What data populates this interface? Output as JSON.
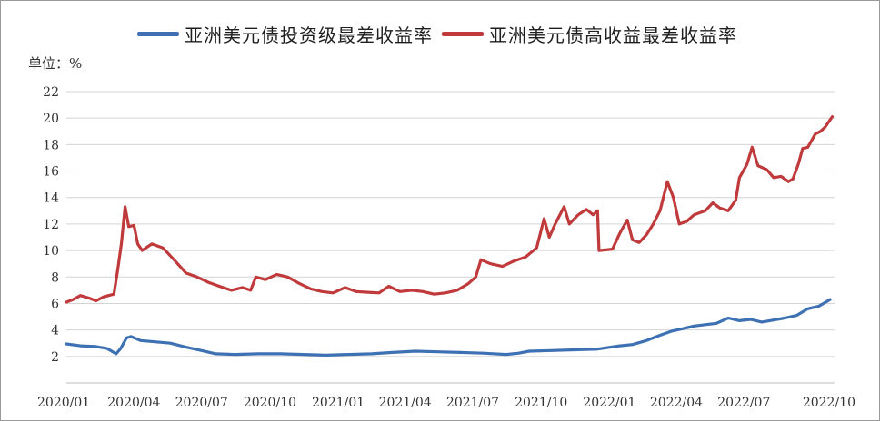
{
  "chart_data": {
    "type": "line",
    "ylabel": "单位：%",
    "ylim": [
      0,
      22
    ],
    "yticks": [
      2,
      4,
      6,
      8,
      10,
      12,
      14,
      16,
      18,
      20,
      22
    ],
    "xlim": [
      "2020-01-01",
      "2022-10-31"
    ],
    "xticks": [
      {
        "label": "2020/01",
        "date": "2020-01-01"
      },
      {
        "label": "2020/04",
        "date": "2020-04-01"
      },
      {
        "label": "2020/07",
        "date": "2020-07-01"
      },
      {
        "label": "2020/10",
        "date": "2020-10-01"
      },
      {
        "label": "2021/01",
        "date": "2021-01-01"
      },
      {
        "label": "2021/04",
        "date": "2021-04-01"
      },
      {
        "label": "2021/07",
        "date": "2021-07-01"
      },
      {
        "label": "2021/10",
        "date": "2021-10-01"
      },
      {
        "label": "2022/01",
        "date": "2022-01-01"
      },
      {
        "label": "2022/04",
        "date": "2022-04-01"
      },
      {
        "label": "2022/07",
        "date": "2022-07-01"
      },
      {
        "label": "2022/10",
        "date": "2022-10-01"
      }
    ],
    "grid": true,
    "legend_position": "top",
    "series": [
      {
        "name": "亚洲美元债投资级最差收益率",
        "color": "#3d71b3",
        "points": [
          [
            "2020-01-01",
            2.95
          ],
          [
            "2020-01-20",
            2.8
          ],
          [
            "2020-02-10",
            2.75
          ],
          [
            "2020-02-25",
            2.6
          ],
          [
            "2020-03-08",
            2.2
          ],
          [
            "2020-03-14",
            2.6
          ],
          [
            "2020-03-22",
            3.4
          ],
          [
            "2020-03-28",
            3.5
          ],
          [
            "2020-04-10",
            3.2
          ],
          [
            "2020-05-01",
            3.1
          ],
          [
            "2020-05-20",
            3.0
          ],
          [
            "2020-06-10",
            2.7
          ],
          [
            "2020-07-01",
            2.45
          ],
          [
            "2020-07-20",
            2.2
          ],
          [
            "2020-08-15",
            2.15
          ],
          [
            "2020-09-15",
            2.2
          ],
          [
            "2020-10-15",
            2.2
          ],
          [
            "2020-11-15",
            2.15
          ],
          [
            "2020-12-15",
            2.1
          ],
          [
            "2021-01-15",
            2.15
          ],
          [
            "2021-02-15",
            2.2
          ],
          [
            "2021-03-15",
            2.3
          ],
          [
            "2021-04-15",
            2.4
          ],
          [
            "2021-05-15",
            2.35
          ],
          [
            "2021-06-15",
            2.3
          ],
          [
            "2021-07-15",
            2.25
          ],
          [
            "2021-08-15",
            2.15
          ],
          [
            "2021-09-01",
            2.25
          ],
          [
            "2021-09-15",
            2.4
          ],
          [
            "2021-10-15",
            2.45
          ],
          [
            "2021-11-15",
            2.5
          ],
          [
            "2021-12-15",
            2.55
          ],
          [
            "2022-01-15",
            2.8
          ],
          [
            "2022-02-01",
            2.9
          ],
          [
            "2022-02-20",
            3.2
          ],
          [
            "2022-03-10",
            3.6
          ],
          [
            "2022-03-25",
            3.9
          ],
          [
            "2022-04-10",
            4.1
          ],
          [
            "2022-04-25",
            4.3
          ],
          [
            "2022-05-10",
            4.4
          ],
          [
            "2022-05-25",
            4.5
          ],
          [
            "2022-06-10",
            4.9
          ],
          [
            "2022-06-25",
            4.7
          ],
          [
            "2022-07-10",
            4.8
          ],
          [
            "2022-07-25",
            4.6
          ],
          [
            "2022-08-10",
            4.75
          ],
          [
            "2022-08-25",
            4.9
          ],
          [
            "2022-09-10",
            5.1
          ],
          [
            "2022-09-25",
            5.6
          ],
          [
            "2022-10-10",
            5.8
          ],
          [
            "2022-10-25",
            6.3
          ]
        ]
      },
      {
        "name": "亚洲美元债高收益最差收益率",
        "color": "#c0393b",
        "points": [
          [
            "2020-01-01",
            6.1
          ],
          [
            "2020-01-10",
            6.3
          ],
          [
            "2020-01-20",
            6.6
          ],
          [
            "2020-02-01",
            6.4
          ],
          [
            "2020-02-10",
            6.2
          ],
          [
            "2020-02-20",
            6.5
          ],
          [
            "2020-03-05",
            6.7
          ],
          [
            "2020-03-10",
            8.5
          ],
          [
            "2020-03-15",
            10.5
          ],
          [
            "2020-03-20",
            13.3
          ],
          [
            "2020-03-25",
            11.8
          ],
          [
            "2020-04-01",
            11.9
          ],
          [
            "2020-04-06",
            10.5
          ],
          [
            "2020-04-12",
            10.0
          ],
          [
            "2020-04-25",
            10.5
          ],
          [
            "2020-05-10",
            10.2
          ],
          [
            "2020-05-25",
            9.3
          ],
          [
            "2020-06-10",
            8.3
          ],
          [
            "2020-06-25",
            8.0
          ],
          [
            "2020-07-10",
            7.6
          ],
          [
            "2020-07-25",
            7.3
          ],
          [
            "2020-08-10",
            7.0
          ],
          [
            "2020-08-25",
            7.2
          ],
          [
            "2020-09-05",
            7.0
          ],
          [
            "2020-09-12",
            8.0
          ],
          [
            "2020-09-25",
            7.8
          ],
          [
            "2020-10-10",
            8.2
          ],
          [
            "2020-10-25",
            8.0
          ],
          [
            "2020-11-10",
            7.5
          ],
          [
            "2020-11-25",
            7.1
          ],
          [
            "2020-12-10",
            6.9
          ],
          [
            "2020-12-25",
            6.8
          ],
          [
            "2021-01-10",
            7.2
          ],
          [
            "2021-01-25",
            6.9
          ],
          [
            "2021-02-10",
            6.85
          ],
          [
            "2021-02-25",
            6.8
          ],
          [
            "2021-03-10",
            7.3
          ],
          [
            "2021-03-25",
            6.9
          ],
          [
            "2021-04-10",
            7.0
          ],
          [
            "2021-04-25",
            6.9
          ],
          [
            "2021-05-10",
            6.7
          ],
          [
            "2021-05-25",
            6.8
          ],
          [
            "2021-06-10",
            7.0
          ],
          [
            "2021-06-25",
            7.5
          ],
          [
            "2021-07-05",
            8.0
          ],
          [
            "2021-07-12",
            9.3
          ],
          [
            "2021-07-25",
            9.0
          ],
          [
            "2021-08-10",
            8.8
          ],
          [
            "2021-08-25",
            9.2
          ],
          [
            "2021-09-10",
            9.5
          ],
          [
            "2021-09-25",
            10.2
          ],
          [
            "2021-10-05",
            12.4
          ],
          [
            "2021-10-12",
            11.0
          ],
          [
            "2021-10-20",
            12.0
          ],
          [
            "2021-11-01",
            13.3
          ],
          [
            "2021-11-08",
            12.0
          ],
          [
            "2021-11-20",
            12.7
          ],
          [
            "2021-12-01",
            13.1
          ],
          [
            "2021-12-10",
            12.7
          ],
          [
            "2021-12-16",
            13.0
          ],
          [
            "2021-12-18",
            10.0
          ],
          [
            "2022-01-05",
            10.1
          ],
          [
            "2022-01-15",
            11.3
          ],
          [
            "2022-01-25",
            12.3
          ],
          [
            "2022-02-01",
            10.8
          ],
          [
            "2022-02-10",
            10.6
          ],
          [
            "2022-02-20",
            11.2
          ],
          [
            "2022-03-01",
            12.0
          ],
          [
            "2022-03-10",
            13.0
          ],
          [
            "2022-03-20",
            15.2
          ],
          [
            "2022-03-28",
            14.0
          ],
          [
            "2022-04-05",
            12.0
          ],
          [
            "2022-04-15",
            12.2
          ],
          [
            "2022-04-25",
            12.7
          ],
          [
            "2022-05-10",
            13.0
          ],
          [
            "2022-05-20",
            13.6
          ],
          [
            "2022-05-30",
            13.2
          ],
          [
            "2022-06-10",
            13.0
          ],
          [
            "2022-06-20",
            13.8
          ],
          [
            "2022-06-25",
            15.5
          ],
          [
            "2022-07-05",
            16.5
          ],
          [
            "2022-07-12",
            17.8
          ],
          [
            "2022-07-20",
            16.4
          ],
          [
            "2022-08-01",
            16.1
          ],
          [
            "2022-08-10",
            15.5
          ],
          [
            "2022-08-20",
            15.6
          ],
          [
            "2022-08-30",
            15.2
          ],
          [
            "2022-09-05",
            15.4
          ],
          [
            "2022-09-12",
            16.5
          ],
          [
            "2022-09-18",
            17.7
          ],
          [
            "2022-09-25",
            17.8
          ],
          [
            "2022-10-05",
            18.8
          ],
          [
            "2022-10-12",
            19.0
          ],
          [
            "2022-10-18",
            19.3
          ],
          [
            "2022-10-28",
            20.1
          ]
        ]
      }
    ]
  }
}
